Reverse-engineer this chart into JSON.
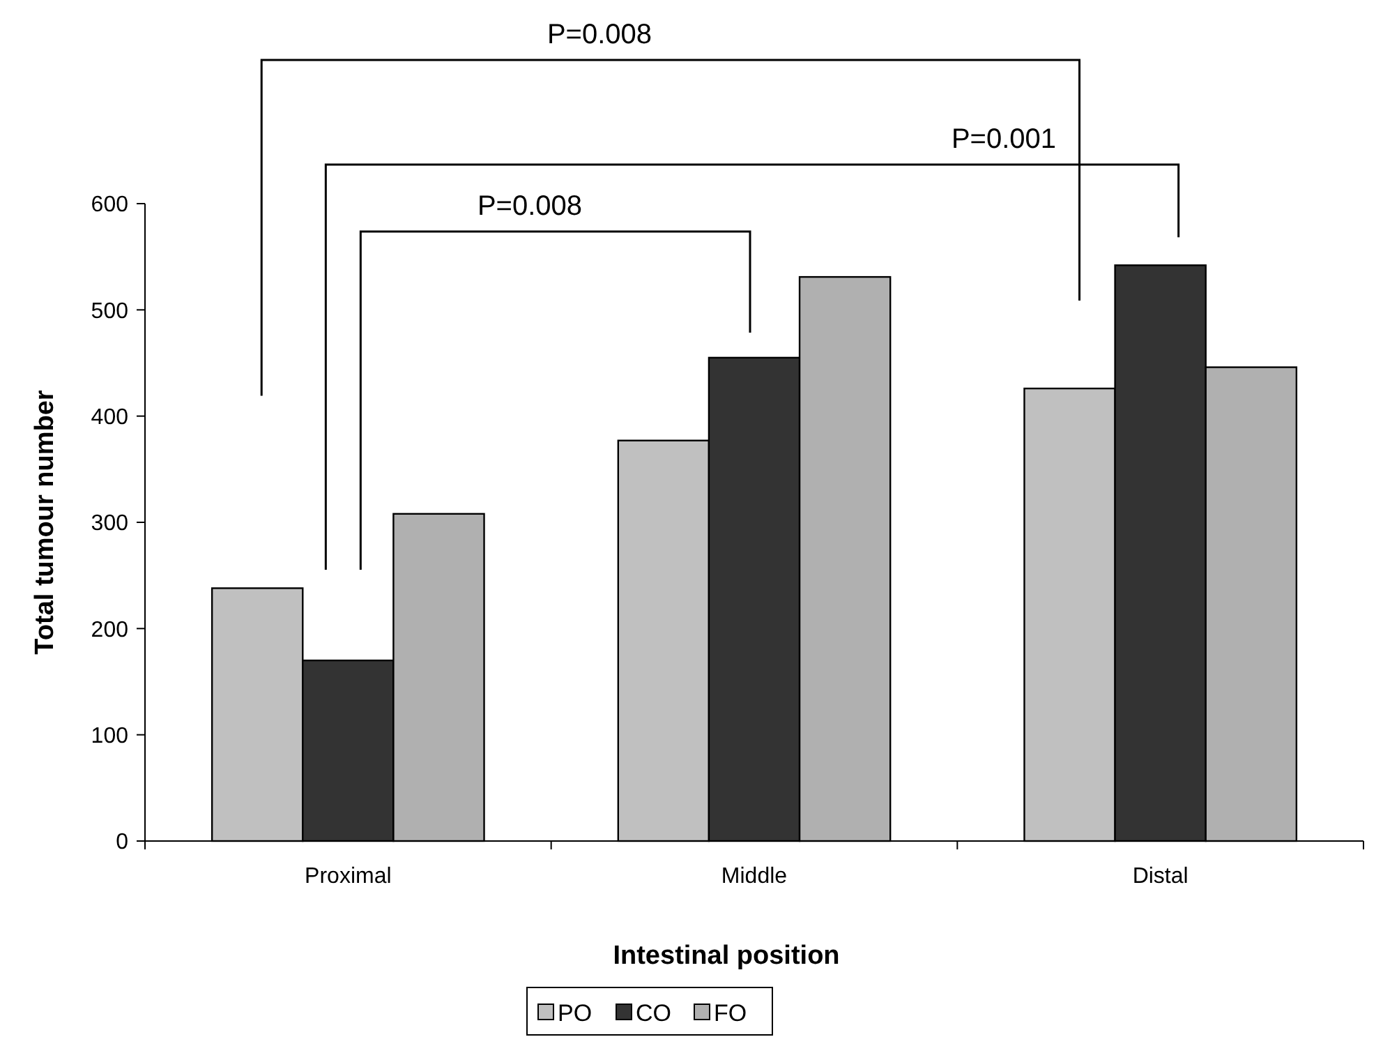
{
  "chart_data": {
    "type": "bar",
    "xlabel": "Intestinal position",
    "ylabel": "Total tumour number",
    "categories": [
      "Proximal",
      "Middle",
      "Distal"
    ],
    "series": [
      {
        "name": "PO",
        "color": "#c0c0c0",
        "values": [
          238,
          377,
          426
        ]
      },
      {
        "name": "CO",
        "color": "#333333",
        "values": [
          170,
          455,
          542
        ]
      },
      {
        "name": "FO",
        "color": "#b0b0b0",
        "values": [
          308,
          531,
          446
        ]
      }
    ],
    "ylim": [
      0,
      600
    ],
    "yticks": [
      0,
      100,
      200,
      300,
      400,
      500,
      600
    ],
    "grid": false,
    "legend": "bottom",
    "annotations": [
      "P=0.008",
      "P=0.001",
      "P=0.008"
    ]
  }
}
